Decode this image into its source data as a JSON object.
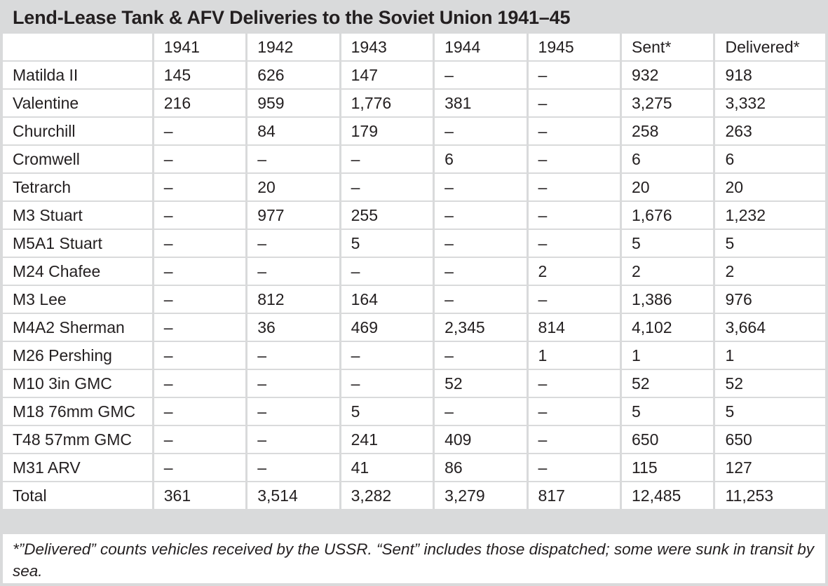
{
  "title": "Lend-Lease Tank & AFV Deliveries to the Soviet Union 1941–45",
  "table": {
    "headers": [
      "",
      "1941",
      "1942",
      "1943",
      "1944",
      "1945",
      "Sent*",
      "Delivered*"
    ],
    "rows": [
      [
        "Matilda II",
        "145",
        "626",
        "147",
        "–",
        "–",
        "932",
        "918"
      ],
      [
        "Valentine",
        "216",
        "959",
        "1,776",
        "381",
        "–",
        "3,275",
        "3,332"
      ],
      [
        "Churchill",
        "–",
        "84",
        "179",
        "–",
        "–",
        "258",
        "263"
      ],
      [
        "Cromwell",
        "–",
        "–",
        "–",
        "6",
        "–",
        "6",
        "6"
      ],
      [
        "Tetrarch",
        "–",
        "20",
        "–",
        "–",
        "–",
        "20",
        "20"
      ],
      [
        "M3 Stuart",
        "–",
        "977",
        "255",
        "–",
        "–",
        "1,676",
        "1,232"
      ],
      [
        "M5A1 Stuart",
        "–",
        "–",
        "5",
        "–",
        "–",
        "5",
        "5"
      ],
      [
        "M24 Chafee",
        "–",
        "–",
        "–",
        "–",
        "2",
        "2",
        "2"
      ],
      [
        "M3 Lee",
        "–",
        "812",
        "164",
        "–",
        "–",
        "1,386",
        "976"
      ],
      [
        "M4A2 Sherman",
        "–",
        "36",
        "469",
        "2,345",
        "814",
        "4,102",
        "3,664"
      ],
      [
        "M26 Pershing",
        "–",
        "–",
        "–",
        "–",
        "1",
        "1",
        "1"
      ],
      [
        "M10 3in GMC",
        "–",
        "–",
        "–",
        "52",
        "–",
        "52",
        "52"
      ],
      [
        "M18 76mm GMC",
        "–",
        "–",
        "5",
        "–",
        "–",
        "5",
        "5"
      ],
      [
        "T48 57mm GMC",
        "–",
        "–",
        "241",
        "409",
        "–",
        "650",
        "650"
      ],
      [
        "M31 ARV",
        "–",
        "–",
        "41",
        "86",
        "–",
        "115",
        "127"
      ],
      [
        "Total",
        "361",
        "3,514",
        "3,282",
        "3,279",
        "817",
        "12,485",
        "11,253"
      ]
    ]
  },
  "footnote": "*”Delivered” counts vehicles received by the USSR. “Sent” includes those dispatched; some were sunk in transit by sea.",
  "colors": {
    "frame": "#d9dadb",
    "text": "#231f20",
    "cell": "#ffffff"
  }
}
